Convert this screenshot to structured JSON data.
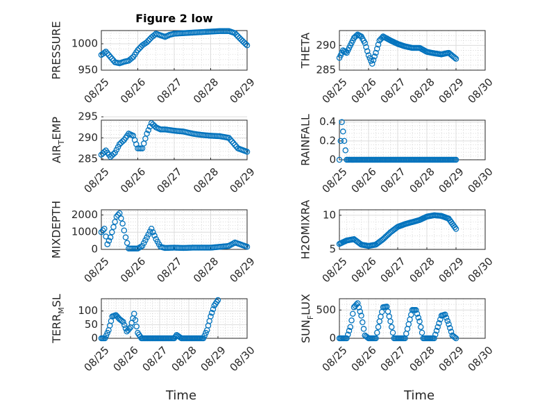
{
  "colors": {
    "marker": "#0072BD",
    "axis": "#262626"
  },
  "chart_data": [
    {
      "id": "pressure",
      "type": "scatter",
      "title": "Figure 2 low",
      "xlabel": "",
      "ylabel": "PRESSURE",
      "xlim": [
        "08/25",
        "08/29"
      ],
      "ylim": [
        950,
        1025
      ],
      "yticks": [
        950,
        1000
      ],
      "xticks": [
        "08/25",
        "08/26",
        "08/27",
        "08/28",
        "08/29"
      ],
      "grid": true,
      "x": [
        "08/25 00:00",
        "08/25 03:00",
        "08/25 06:00",
        "08/25 09:00",
        "08/25 12:00",
        "08/25 15:00",
        "08/25 18:00",
        "08/25 21:00",
        "08/26 00:00",
        "08/26 03:00",
        "08/26 06:00",
        "08/26 09:00",
        "08/26 12:00",
        "08/26 15:00",
        "08/26 18:00",
        "08/26 21:00",
        "08/27 00:00",
        "08/27 06:00",
        "08/27 12:00",
        "08/27 18:00",
        "08/28 00:00",
        "08/28 06:00",
        "08/28 12:00",
        "08/28 16:00",
        "08/28 20:00",
        "08/29 00:00"
      ],
      "y": [
        979,
        985,
        975,
        965,
        963,
        966,
        968,
        975,
        988,
        997,
        1003,
        1012,
        1019,
        1016,
        1013,
        1017,
        1019,
        1020,
        1021,
        1022,
        1023,
        1024,
        1024,
        1020,
        1008,
        997
      ]
    },
    {
      "id": "theta",
      "type": "scatter",
      "title": "",
      "xlabel": "",
      "ylabel": "THETA",
      "xlim": [
        "08/25",
        "08/30"
      ],
      "ylim": [
        285,
        293
      ],
      "yticks": [
        285,
        290
      ],
      "xticks": [
        "08/25",
        "08/26",
        "08/27",
        "08/28",
        "08/29",
        "08/30"
      ],
      "grid": true,
      "x": [
        "08/25 00:00",
        "08/25 03:00",
        "08/25 06:00",
        "08/25 09:00",
        "08/25 12:00",
        "08/25 15:00",
        "08/25 18:00",
        "08/25 21:00",
        "08/26 00:00",
        "08/26 03:00",
        "08/26 06:00",
        "08/26 09:00",
        "08/26 12:00",
        "08/26 18:00",
        "08/27 00:00",
        "08/27 06:00",
        "08/27 12:00",
        "08/27 18:00",
        "08/28 00:00",
        "08/28 06:00",
        "08/28 12:00",
        "08/28 18:00",
        "08/29 00:00"
      ],
      "y": [
        287.5,
        289,
        288.5,
        290,
        291.5,
        292.2,
        291.8,
        290.5,
        288,
        286.3,
        288.5,
        291,
        291.8,
        291,
        290.3,
        289.8,
        289.5,
        289.5,
        288.7,
        288.4,
        288.2,
        288.5,
        287.3
      ]
    },
    {
      "id": "air-temp",
      "type": "scatter",
      "title": "",
      "xlabel": "",
      "ylabel": "AIR_TEMP",
      "xlim": [
        "08/25",
        "08/29"
      ],
      "ylim": [
        284.8,
        294.2
      ],
      "yticks": [
        285,
        290,
        295
      ],
      "xticks": [
        "08/25",
        "08/26",
        "08/27",
        "08/28",
        "08/29"
      ],
      "grid": true,
      "x": [
        "08/25 00:00",
        "08/25 03:00",
        "08/25 06:00",
        "08/25 09:00",
        "08/25 12:00",
        "08/25 15:00",
        "08/25 18:00",
        "08/25 21:00",
        "08/26 00:00",
        "08/26 03:00",
        "08/26 06:00",
        "08/26 09:00",
        "08/26 12:00",
        "08/26 15:00",
        "08/26 18:00",
        "08/27 00:00",
        "08/27 06:00",
        "08/27 12:00",
        "08/27 18:00",
        "08/28 00:00",
        "08/28 06:00",
        "08/28 12:00",
        "08/28 18:00",
        "08/29 00:00"
      ],
      "y": [
        286,
        287,
        285.5,
        286.5,
        288.5,
        289.5,
        291,
        290.5,
        287.5,
        287.5,
        291,
        293.5,
        292.5,
        292,
        292,
        291.7,
        291.5,
        291,
        290.7,
        290.5,
        290.4,
        290,
        287.5,
        286.7
      ]
    },
    {
      "id": "rainfall",
      "type": "scatter",
      "title": "",
      "xlabel": "",
      "ylabel": "RAINFALL",
      "xlim": [
        "08/25",
        "08/30"
      ],
      "ylim": [
        0,
        0.42
      ],
      "yticks": [
        0,
        0.2,
        0.4
      ],
      "xticks": [
        "08/25",
        "08/26",
        "08/27",
        "08/28",
        "08/29",
        "08/30"
      ],
      "grid": true,
      "x": [
        "08/25 00:00",
        "08/25 01:00",
        "08/25 02:00",
        "08/25 06:00",
        "08/25 12:00",
        "08/25 18:00",
        "08/26 00:00",
        "08/26 06:00",
        "08/26 12:00",
        "08/26 18:00",
        "08/27 00:00",
        "08/27 06:00",
        "08/27 12:00",
        "08/27 18:00",
        "08/28 00:00",
        "08/28 06:00",
        "08/28 12:00",
        "08/28 18:00",
        "08/29 00:00"
      ],
      "y": [
        0,
        0.2,
        0.4,
        0,
        0,
        0,
        0,
        0,
        0,
        0,
        0,
        0,
        0,
        0,
        0,
        0,
        0,
        0,
        0
      ]
    },
    {
      "id": "mixdepth",
      "type": "scatter",
      "title": "",
      "xlabel": "",
      "ylabel": "MIXDEPTH",
      "xlim": [
        "08/25",
        "08/29"
      ],
      "ylim": [
        0,
        2300
      ],
      "yticks": [
        0,
        1000,
        2000
      ],
      "xticks": [
        "08/25",
        "08/26",
        "08/27",
        "08/28",
        "08/29"
      ],
      "grid": true,
      "x": [
        "08/25 00:00",
        "08/25 02:00",
        "08/25 04:00",
        "08/25 06:00",
        "08/25 08:00",
        "08/25 10:00",
        "08/25 12:00",
        "08/25 14:00",
        "08/25 16:00",
        "08/25 18:00",
        "08/25 20:00",
        "08/26 00:00",
        "08/26 03:00",
        "08/26 06:00",
        "08/26 09:00",
        "08/26 12:00",
        "08/26 15:00",
        "08/26 18:00",
        "08/27 00:00",
        "08/27 06:00",
        "08/27 12:00",
        "08/27 18:00",
        "08/28 00:00",
        "08/28 06:00",
        "08/28 12:00",
        "08/28 16:00",
        "08/29 00:00"
      ],
      "y": [
        1000,
        1200,
        300,
        700,
        1300,
        1900,
        2100,
        1500,
        700,
        50,
        50,
        50,
        200,
        700,
        1200,
        600,
        150,
        80,
        100,
        80,
        100,
        100,
        100,
        150,
        200,
        400,
        150
      ]
    },
    {
      "id": "h2omixra",
      "type": "scatter",
      "title": "",
      "xlabel": "",
      "ylabel": "H2OMIXRA",
      "xlim": [
        "08/25",
        "08/30"
      ],
      "ylim": [
        5,
        10.8
      ],
      "yticks": [
        5,
        10
      ],
      "xticks": [
        "08/25",
        "08/26",
        "08/27",
        "08/28",
        "08/29",
        "08/30"
      ],
      "grid": true,
      "x": [
        "08/25 00:00",
        "08/25 06:00",
        "08/25 12:00",
        "08/25 18:00",
        "08/26 00:00",
        "08/26 06:00",
        "08/26 12:00",
        "08/26 18:00",
        "08/27 00:00",
        "08/27 06:00",
        "08/27 12:00",
        "08/27 18:00",
        "08/28 00:00",
        "08/28 06:00",
        "08/28 12:00",
        "08/28 18:00",
        "08/29 00:00"
      ],
      "y": [
        5.8,
        6.3,
        6.5,
        5.7,
        5.5,
        5.7,
        6.5,
        7.5,
        8.3,
        8.7,
        9,
        9.3,
        9.8,
        10,
        9.9,
        9.5,
        8
      ]
    },
    {
      "id": "terr-msl",
      "type": "scatter",
      "title": "",
      "xlabel": "Time",
      "ylabel": "TERR_MSL",
      "xlim": [
        "08/25",
        "08/30"
      ],
      "ylim": [
        0,
        145
      ],
      "yticks": [
        0,
        50,
        100
      ],
      "xticks": [
        "08/25",
        "08/26",
        "08/27",
        "08/28",
        "08/29",
        "08/30"
      ],
      "grid": true,
      "x": [
        "08/25 00:00",
        "08/25 03:00",
        "08/25 06:00",
        "08/25 09:00",
        "08/25 12:00",
        "08/25 15:00",
        "08/25 18:00",
        "08/25 21:00",
        "08/26 00:00",
        "08/26 03:00",
        "08/26 06:00",
        "08/26 09:00",
        "08/26 12:00",
        "08/26 18:00",
        "08/27 00:00",
        "08/27 06:00",
        "08/27 12:00",
        "08/27 14:00",
        "08/27 18:00",
        "08/28 00:00",
        "08/28 06:00",
        "08/28 12:00",
        "08/28 15:00",
        "08/28 18:00",
        "08/28 21:00",
        "08/29 00:00"
      ],
      "y": [
        0,
        0,
        30,
        80,
        85,
        70,
        60,
        25,
        40,
        90,
        20,
        0,
        0,
        0,
        0,
        0,
        0,
        12,
        0,
        0,
        0,
        0,
        30,
        80,
        120,
        140
      ]
    },
    {
      "id": "sun-flux",
      "type": "scatter",
      "title": "",
      "xlabel": "Time",
      "ylabel": "SUN_FLUX",
      "xlim": [
        "08/25",
        "08/30"
      ],
      "ylim": [
        0,
        700
      ],
      "yticks": [
        0,
        500
      ],
      "xticks": [
        "08/25",
        "08/26",
        "08/27",
        "08/28",
        "08/29",
        "08/30"
      ],
      "grid": true,
      "x": [
        "08/25 00:00",
        "08/25 06:00",
        "08/25 09:00",
        "08/25 12:00",
        "08/25 15:00",
        "08/25 18:00",
        "08/25 21:00",
        "08/26 00:00",
        "08/26 06:00",
        "08/26 09:00",
        "08/26 12:00",
        "08/26 15:00",
        "08/26 18:00",
        "08/26 21:00",
        "08/27 00:00",
        "08/27 06:00",
        "08/27 09:00",
        "08/27 12:00",
        "08/27 15:00",
        "08/27 18:00",
        "08/27 21:00",
        "08/28 00:00",
        "08/28 06:00",
        "08/28 09:00",
        "08/28 12:00",
        "08/28 15:00",
        "08/28 18:00",
        "08/28 21:00",
        "08/29 00:00"
      ],
      "y": [
        0,
        0,
        200,
        550,
        620,
        400,
        50,
        0,
        0,
        300,
        550,
        560,
        300,
        0,
        0,
        0,
        250,
        500,
        500,
        300,
        0,
        0,
        0,
        200,
        400,
        420,
        250,
        50,
        0
      ]
    }
  ]
}
